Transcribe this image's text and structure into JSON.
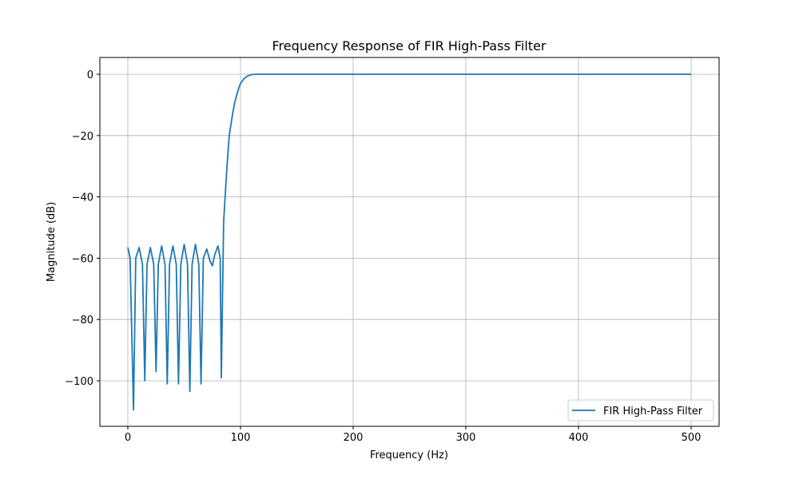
{
  "chart_data": {
    "type": "line",
    "title": "Frequency Response of FIR High-Pass Filter",
    "xlabel": "Frequency (Hz)",
    "ylabel": "Magnitude (dB)",
    "xlim": [
      -25,
      525
    ],
    "ylim": [
      -115,
      5.5
    ],
    "xticks": [
      0,
      100,
      200,
      300,
      400,
      500
    ],
    "yticks": [
      0,
      -20,
      -40,
      -60,
      -80,
      -100
    ],
    "xtick_labels": [
      "0",
      "100",
      "200",
      "300",
      "400",
      "500"
    ],
    "ytick_labels": [
      "0",
      "−20",
      "−40",
      "−60",
      "−80",
      "−100"
    ],
    "grid": true,
    "legend_position": "lower right",
    "series": [
      {
        "name": "FIR High-Pass Filter",
        "color": "#1f77b4",
        "x": [
          0,
          2,
          5,
          7,
          10,
          13,
          15,
          17,
          20,
          23,
          25,
          27,
          30,
          33,
          35,
          37,
          40,
          43,
          45,
          47,
          50,
          53,
          55,
          57,
          60,
          63,
          65,
          67,
          70,
          73,
          75,
          77,
          80,
          82,
          83,
          85,
          88,
          90,
          93,
          95,
          98,
          100,
          103,
          106,
          110,
          115,
          120,
          200,
          300,
          400,
          500
        ],
        "y": [
          -56.5,
          -60,
          -109.5,
          -60,
          -56.5,
          -62,
          -100,
          -62,
          -56.5,
          -62,
          -97,
          -62,
          -56,
          -62,
          -101,
          -62,
          -56,
          -62,
          -101,
          -62,
          -55.5,
          -62,
          -103.5,
          -62,
          -55.5,
          -62,
          -101,
          -60,
          -57,
          -61,
          -62.5,
          -59,
          -56,
          -60,
          -99,
          -48,
          -30,
          -20,
          -13,
          -9,
          -5,
          -3,
          -1.5,
          -0.6,
          -0.1,
          0,
          0,
          0,
          0,
          0,
          0
        ]
      }
    ]
  }
}
